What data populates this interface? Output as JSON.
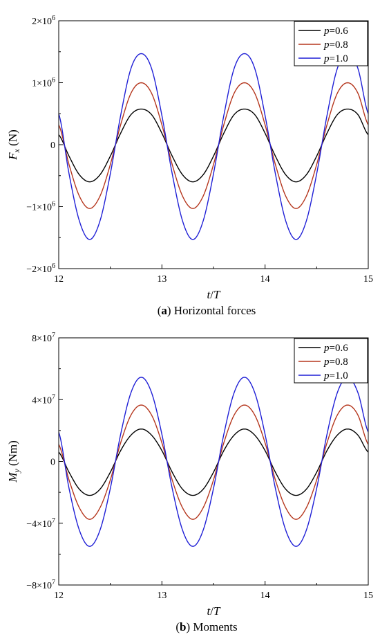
{
  "chart_data": [
    {
      "type": "line",
      "panel": "a",
      "caption_letter": "a",
      "caption_text": "Horizontal forces",
      "xlabel": {
        "t": "t",
        "slash": "/",
        "T": "T"
      },
      "ylabel": {
        "main": "F",
        "sub": "x",
        "unit": " (N)"
      },
      "xlim": [
        12,
        15
      ],
      "ylim": [
        -2000000,
        2000000
      ],
      "xticks": [
        {
          "value": 12,
          "label": "12"
        },
        {
          "value": 13,
          "label": "13"
        },
        {
          "value": 14,
          "label": "14"
        },
        {
          "value": 15,
          "label": "15"
        }
      ],
      "yticks": [
        {
          "value": 2000000,
          "base": "2×10",
          "exp": "6"
        },
        {
          "value": 1000000,
          "base": "1×10",
          "exp": "6"
        },
        {
          "value": 0,
          "base": "0",
          "exp": ""
        },
        {
          "value": -1000000,
          "base": "−1×10",
          "exp": "6"
        },
        {
          "value": -2000000,
          "base": "−2×10",
          "exp": "6"
        }
      ],
      "legend_position": "top-right",
      "grid": false,
      "x": [
        12.0,
        12.1,
        12.2,
        12.3,
        12.4,
        12.5,
        12.6,
        12.7,
        12.8,
        12.9,
        13.0,
        13.1,
        13.2,
        13.3,
        13.4,
        13.5,
        13.6,
        13.7,
        13.8,
        13.9,
        14.0,
        14.1,
        14.2,
        14.3,
        14.4,
        14.5,
        14.6,
        14.7,
        14.8,
        14.9,
        15.0
      ],
      "series": [
        {
          "name": {
            "var": "p",
            "value": "=0.6"
          },
          "color": "#000000",
          "values": [
            160000,
            -185000,
            -485000,
            -600000,
            -485000,
            -185000,
            185000,
            485000,
            575000,
            485000,
            185000,
            -185000,
            -485000,
            -600000,
            -485000,
            -185000,
            185000,
            485000,
            575000,
            485000,
            185000,
            -185000,
            -485000,
            -600000,
            -485000,
            -185000,
            185000,
            485000,
            575000,
            485000,
            160000
          ]
        },
        {
          "name": {
            "var": "p",
            "value": "=0.8"
          },
          "color": "#b5361d",
          "values": [
            320000,
            -320000,
            -830000,
            -1030000,
            -830000,
            -320000,
            320000,
            830000,
            1000000,
            830000,
            320000,
            -320000,
            -830000,
            -1030000,
            -830000,
            -320000,
            320000,
            830000,
            1000000,
            830000,
            320000,
            -320000,
            -830000,
            -1030000,
            -830000,
            -320000,
            320000,
            830000,
            1000000,
            830000,
            320000
          ]
        },
        {
          "name": {
            "var": "p",
            "value": "=1.0"
          },
          "color": "#1f1fd6",
          "values": [
            500000,
            -470000,
            -1230000,
            -1530000,
            -1230000,
            -470000,
            470000,
            1230000,
            1470000,
            1230000,
            470000,
            -470000,
            -1230000,
            -1530000,
            -1230000,
            -470000,
            470000,
            1230000,
            1470000,
            1230000,
            470000,
            -470000,
            -1230000,
            -1530000,
            -1230000,
            -470000,
            470000,
            1230000,
            1470000,
            1230000,
            500000
          ]
        }
      ]
    },
    {
      "type": "line",
      "panel": "b",
      "caption_letter": "b",
      "caption_text": "Moments",
      "xlabel": {
        "t": "t",
        "slash": "/",
        "T": "T"
      },
      "ylabel": {
        "main": "M",
        "sub": "y",
        "unit": " (Nm)"
      },
      "xlim": [
        12,
        15
      ],
      "ylim": [
        -80000000,
        80000000
      ],
      "xticks": [
        {
          "value": 12,
          "label": "12"
        },
        {
          "value": 13,
          "label": "13"
        },
        {
          "value": 14,
          "label": "14"
        },
        {
          "value": 15,
          "label": "15"
        }
      ],
      "yticks": [
        {
          "value": 80000000,
          "base": "8×10",
          "exp": "7"
        },
        {
          "value": 40000000,
          "base": "4×10",
          "exp": "7"
        },
        {
          "value": 0,
          "base": "0",
          "exp": ""
        },
        {
          "value": -40000000,
          "base": "−4×10",
          "exp": "7"
        },
        {
          "value": -80000000,
          "base": "−8×10",
          "exp": "7"
        }
      ],
      "legend_position": "top-right",
      "grid": false,
      "x": [
        12.0,
        12.1,
        12.2,
        12.3,
        12.4,
        12.5,
        12.6,
        12.7,
        12.8,
        12.9,
        13.0,
        13.1,
        13.2,
        13.3,
        13.4,
        13.5,
        13.6,
        13.7,
        13.8,
        13.9,
        14.0,
        14.1,
        14.2,
        14.3,
        14.4,
        14.5,
        14.6,
        14.7,
        14.8,
        14.9,
        15.0
      ],
      "series": [
        {
          "name": {
            "var": "p",
            "value": "=0.6"
          },
          "color": "#000000",
          "values": [
            6000000,
            -7000000,
            -18000000,
            -22000000,
            -18000000,
            -7000000,
            7000000,
            17000000,
            21000000,
            17000000,
            7000000,
            -7000000,
            -18000000,
            -22000000,
            -18000000,
            -7000000,
            7000000,
            17000000,
            21000000,
            17000000,
            7000000,
            -7000000,
            -18000000,
            -22000000,
            -18000000,
            -7000000,
            7000000,
            17000000,
            21000000,
            17000000,
            6000000
          ]
        },
        {
          "name": {
            "var": "p",
            "value": "=0.8"
          },
          "color": "#b5361d",
          "values": [
            11000000,
            -12000000,
            -30000000,
            -37500000,
            -30000000,
            -12000000,
            12000000,
            30000000,
            36500000,
            30000000,
            12000000,
            -12000000,
            -30000000,
            -37500000,
            -30000000,
            -12000000,
            12000000,
            30000000,
            36500000,
            30000000,
            12000000,
            -12000000,
            -30000000,
            -37500000,
            -30000000,
            -12000000,
            12000000,
            30000000,
            36500000,
            30000000,
            11000000
          ]
        },
        {
          "name": {
            "var": "p",
            "value": "=1.0"
          },
          "color": "#1f1fd6",
          "values": [
            19000000,
            -17500000,
            -44500000,
            -55000000,
            -44500000,
            -17500000,
            17500000,
            44500000,
            54500000,
            44500000,
            17500000,
            -17500000,
            -44500000,
            -55000000,
            -44500000,
            -17500000,
            17500000,
            44500000,
            54500000,
            44500000,
            17500000,
            -17500000,
            -44500000,
            -55000000,
            -44500000,
            -17500000,
            17500000,
            44500000,
            54500000,
            44500000,
            19000000
          ]
        }
      ]
    }
  ]
}
